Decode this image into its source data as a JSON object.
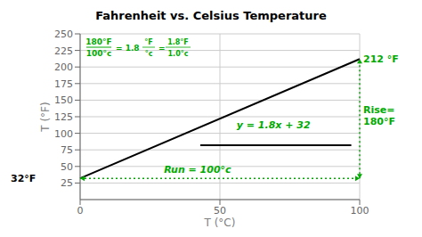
{
  "chart_data": {
    "type": "line",
    "title": "Fahrenheit vs. Celsius Temperature",
    "x_label": "T (°C)",
    "y_label": "T (°F)",
    "xlim": [
      0,
      100
    ],
    "ylim": [
      0,
      250
    ],
    "xticks": [
      0,
      50,
      100
    ],
    "yticks": [
      25,
      50,
      75,
      100,
      125,
      150,
      175,
      200,
      225,
      250
    ],
    "grid": true,
    "series": [
      {
        "x": [
          0,
          100
        ],
        "values": [
          32,
          212
        ],
        "color": "#000000",
        "line_style": "solid"
      },
      {
        "x": [
          43,
          97
        ],
        "values": [
          82,
          82
        ],
        "color": "#000000",
        "line_style": "solid"
      },
      {
        "x": [
          0,
          100
        ],
        "values": [
          32,
          32
        ],
        "color": "#00aa00",
        "line_style": "dotted",
        "marker": "arrow"
      },
      {
        "x": [
          100,
          100
        ],
        "values": [
          32,
          212
        ],
        "color": "#00aa00",
        "line_style": "dotted",
        "marker": "arrow"
      }
    ],
    "annotations": [
      {
        "text": "y = 1.8x + 32",
        "color": "#00aa00"
      },
      {
        "text": "32°F",
        "color": "#000000"
      },
      {
        "text": "212 °F",
        "color": "#00aa00"
      },
      {
        "text": "Rise=\n180°F",
        "color": "#00aa00"
      },
      {
        "text": "Run = 100°c",
        "color": "#00aa00"
      },
      {
        "text": "180°F",
        "color": "#00aa00"
      },
      {
        "text": "100°c",
        "color": "#00aa00"
      },
      {
        "text": "= 1.8",
        "color": "#00aa00"
      },
      {
        "text": "°F",
        "color": "#00aa00"
      },
      {
        "text": "°c",
        "color": "#00aa00"
      },
      {
        "text": "=",
        "color": "#00aa00"
      },
      {
        "text": "1.8°F",
        "color": "#00aa00"
      },
      {
        "text": "1.0°c",
        "color": "#00aa00"
      }
    ]
  }
}
